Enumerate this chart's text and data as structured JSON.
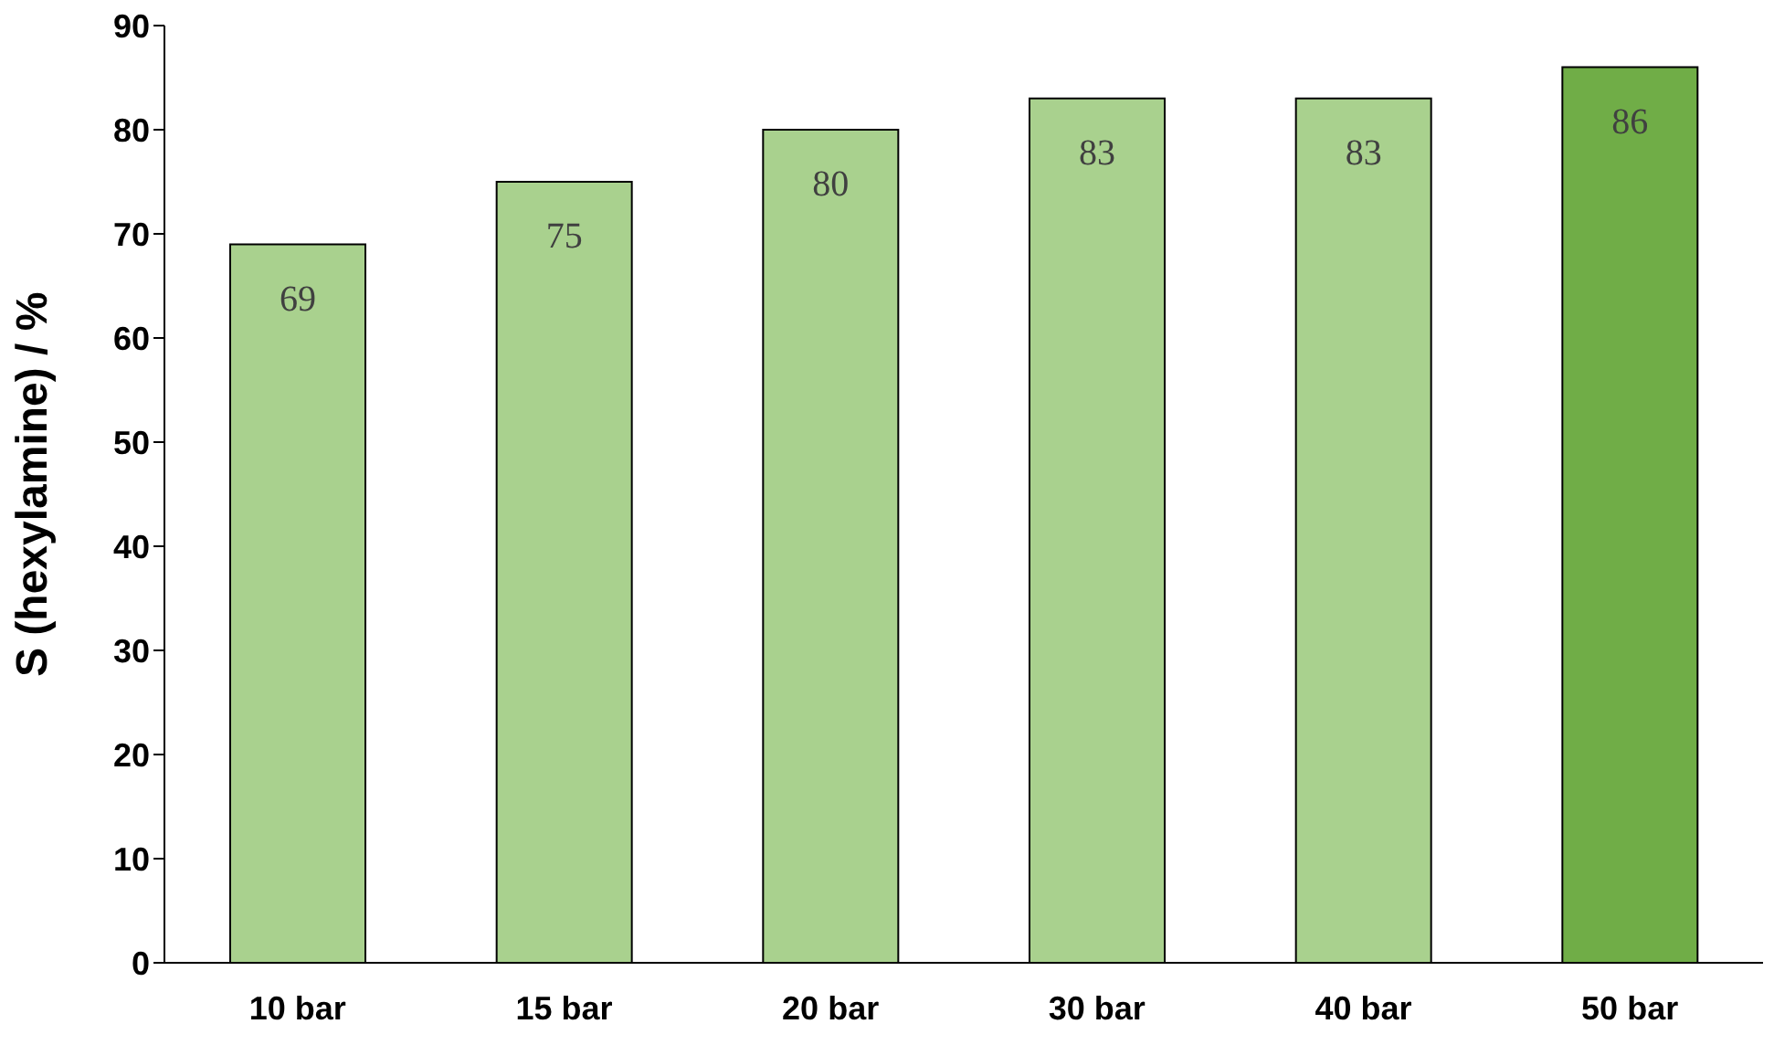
{
  "chart_data": {
    "type": "bar",
    "ylabel": "S (hexylamine) / %",
    "categories": [
      "10 bar",
      "15 bar",
      "20 bar",
      "30 bar",
      "40 bar",
      "50 bar"
    ],
    "values": [
      69,
      75,
      80,
      83,
      83,
      86
    ],
    "colors": [
      "#a9d18e",
      "#a9d18e",
      "#a9d18e",
      "#a9d18e",
      "#a9d18e",
      "#70ad47"
    ],
    "ylim": [
      0,
      90
    ],
    "yticks": [
      0,
      10,
      20,
      30,
      40,
      50,
      60,
      70,
      80,
      90
    ],
    "grid": false,
    "legend": false,
    "data_labels": true
  }
}
